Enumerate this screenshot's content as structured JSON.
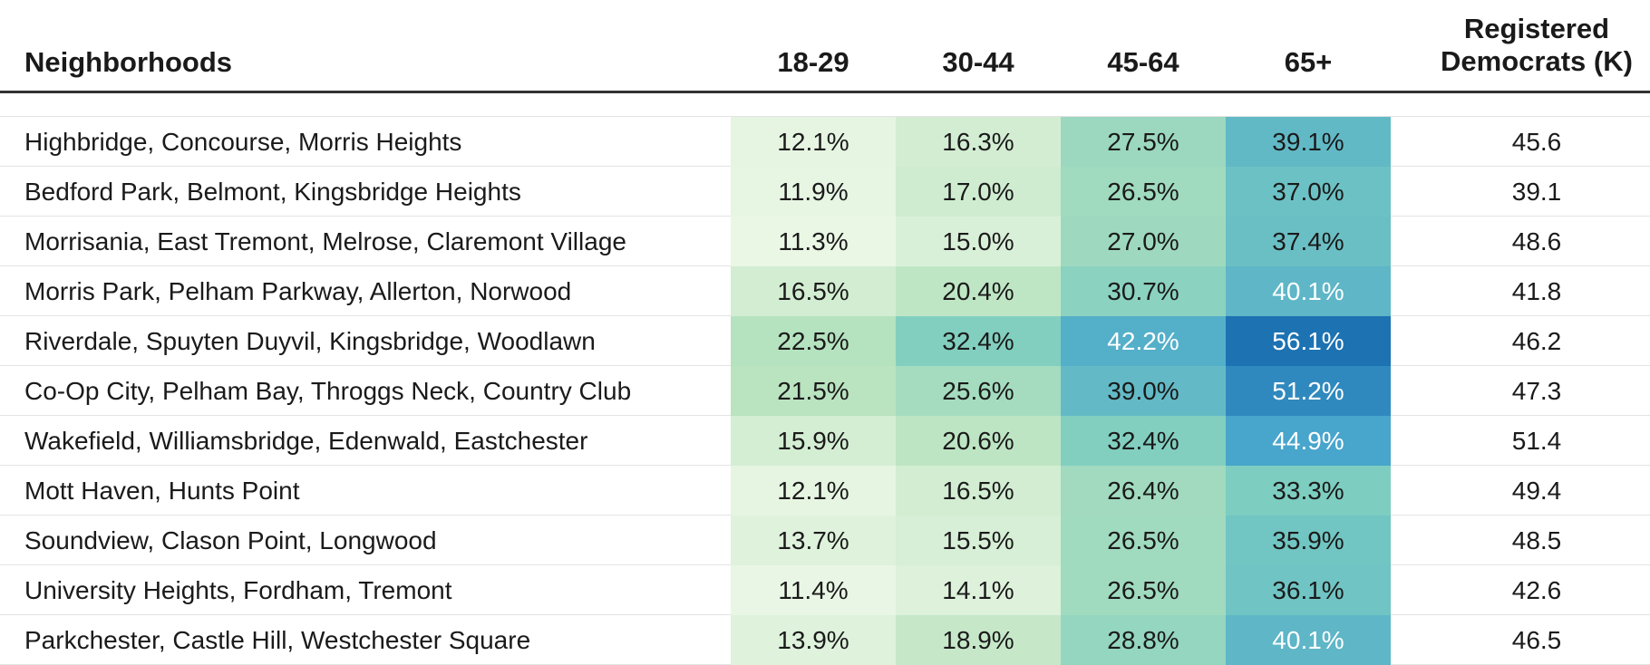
{
  "chart_data": {
    "type": "table",
    "columns": {
      "neighborhoods": "Neighborhoods",
      "age_groups": [
        "18-29",
        "30-44",
        "45-64",
        "65+"
      ],
      "registered_line1": "Registered",
      "registered_line2": "Democrats (K)"
    },
    "color_scale": [
      "#f0f9ea",
      "#b9e3bf",
      "#7ccdc0",
      "#46a4cc",
      "#1a6eb0"
    ],
    "rows": [
      {
        "neighborhood": "Highbridge, Concourse, Morris Heights",
        "values": [
          "12.1%",
          "16.3%",
          "27.5%",
          "39.1%"
        ],
        "nums": [
          12.1,
          16.3,
          27.5,
          39.1
        ],
        "registered": "45.6"
      },
      {
        "neighborhood": "Bedford Park, Belmont, Kingsbridge Heights",
        "values": [
          "11.9%",
          "17.0%",
          "26.5%",
          "37.0%"
        ],
        "nums": [
          11.9,
          17.0,
          26.5,
          37.0
        ],
        "registered": "39.1"
      },
      {
        "neighborhood": "Morrisania, East Tremont, Melrose, Claremont Village",
        "values": [
          "11.3%",
          "15.0%",
          "27.0%",
          "37.4%"
        ],
        "nums": [
          11.3,
          15.0,
          27.0,
          37.4
        ],
        "registered": "48.6"
      },
      {
        "neighborhood": "Morris Park, Pelham Parkway, Allerton, Norwood",
        "values": [
          "16.5%",
          "20.4%",
          "30.7%",
          "40.1%"
        ],
        "nums": [
          16.5,
          20.4,
          30.7,
          40.1
        ],
        "registered": "41.8"
      },
      {
        "neighborhood": "Riverdale, Spuyten Duyvil, Kingsbridge, Woodlawn",
        "values": [
          "22.5%",
          "32.4%",
          "42.2%",
          "56.1%"
        ],
        "nums": [
          22.5,
          32.4,
          42.2,
          56.1
        ],
        "registered": "46.2"
      },
      {
        "neighborhood": "Co-Op City, Pelham Bay, Throggs Neck, Country Club",
        "values": [
          "21.5%",
          "25.6%",
          "39.0%",
          "51.2%"
        ],
        "nums": [
          21.5,
          25.6,
          39.0,
          51.2
        ],
        "registered": "47.3"
      },
      {
        "neighborhood": "Wakefield, Williamsbridge, Edenwald, Eastchester",
        "values": [
          "15.9%",
          "20.6%",
          "32.4%",
          "44.9%"
        ],
        "nums": [
          15.9,
          20.6,
          32.4,
          44.9
        ],
        "registered": "51.4"
      },
      {
        "neighborhood": "Mott Haven, Hunts Point",
        "values": [
          "12.1%",
          "16.5%",
          "26.4%",
          "33.3%"
        ],
        "nums": [
          12.1,
          16.5,
          26.4,
          33.3
        ],
        "registered": "49.4"
      },
      {
        "neighborhood": "Soundview, Clason Point, Longwood",
        "values": [
          "13.7%",
          "15.5%",
          "26.5%",
          "35.9%"
        ],
        "nums": [
          13.7,
          15.5,
          26.5,
          35.9
        ],
        "registered": "48.5"
      },
      {
        "neighborhood": "University Heights, Fordham, Tremont",
        "values": [
          "11.4%",
          "14.1%",
          "26.5%",
          "36.1%"
        ],
        "nums": [
          11.4,
          14.1,
          26.5,
          36.1
        ],
        "registered": "42.6"
      },
      {
        "neighborhood": "Parkchester, Castle Hill, Westchester Square",
        "values": [
          "13.9%",
          "18.9%",
          "28.8%",
          "40.1%"
        ],
        "nums": [
          13.9,
          18.9,
          28.8,
          40.1
        ],
        "registered": "46.5"
      }
    ]
  }
}
